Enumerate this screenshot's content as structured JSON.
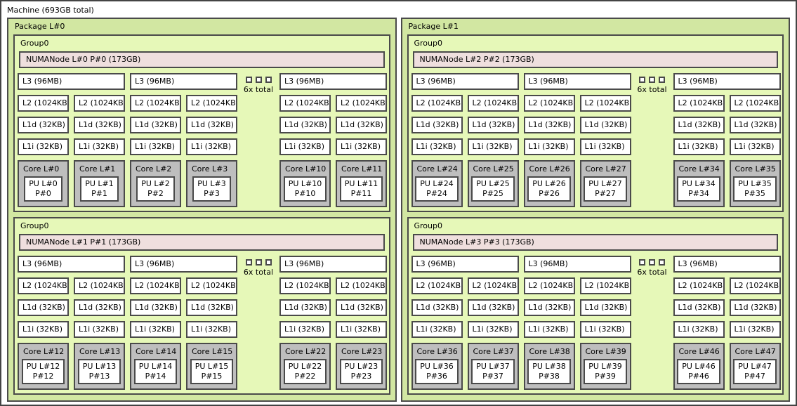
{
  "machine": {
    "label": "Machine (693GB total)"
  },
  "colors": {
    "machine_bg": "#ffffff",
    "package_bg": "#d2e7a2",
    "group_bg": "#e6f8b8",
    "numanode_bg": "#efdfde",
    "cache_bg": "#ffffff",
    "core_bg": "#bebebe",
    "pu_bg": "#ffffff",
    "border": "#4a4a4a",
    "text": "#000000"
  },
  "packages": [
    {
      "label": "Package L#0",
      "groups": [
        {
          "label": "Group0",
          "numanode": "NUMANode L#0 P#0 (173GB)",
          "elision": "6x total",
          "clusters": [
            {
              "l3": "L3 (96MB)",
              "cols": [
                {
                  "l2": "L2 (1024KB)",
                  "l1d": "L1d (32KB)",
                  "l1i": "L1i (32KB)",
                  "core": "Core L#0",
                  "pu_l": "PU L#0",
                  "pu_p": "P#0"
                },
                {
                  "l2": "L2 (1024KB)",
                  "l1d": "L1d (32KB)",
                  "l1i": "L1i (32KB)",
                  "core": "Core L#1",
                  "pu_l": "PU L#1",
                  "pu_p": "P#1"
                }
              ]
            },
            {
              "l3": "L3 (96MB)",
              "cols": [
                {
                  "l2": "L2 (1024KB)",
                  "l1d": "L1d (32KB)",
                  "l1i": "L1i (32KB)",
                  "core": "Core L#2",
                  "pu_l": "PU L#2",
                  "pu_p": "P#2"
                },
                {
                  "l2": "L2 (1024KB)",
                  "l1d": "L1d (32KB)",
                  "l1i": "L1i (32KB)",
                  "core": "Core L#3",
                  "pu_l": "PU L#3",
                  "pu_p": "P#3"
                }
              ]
            },
            {
              "l3": "L3 (96MB)",
              "cols": [
                {
                  "l2": "L2 (1024KB)",
                  "l1d": "L1d (32KB)",
                  "l1i": "L1i (32KB)",
                  "core": "Core L#10",
                  "pu_l": "PU L#10",
                  "pu_p": "P#10"
                },
                {
                  "l2": "L2 (1024KB)",
                  "l1d": "L1d (32KB)",
                  "l1i": "L1i (32KB)",
                  "core": "Core L#11",
                  "pu_l": "PU L#11",
                  "pu_p": "P#11"
                }
              ]
            }
          ]
        },
        {
          "label": "Group0",
          "numanode": "NUMANode L#1 P#1 (173GB)",
          "elision": "6x total",
          "clusters": [
            {
              "l3": "L3 (96MB)",
              "cols": [
                {
                  "l2": "L2 (1024KB)",
                  "l1d": "L1d (32KB)",
                  "l1i": "L1i (32KB)",
                  "core": "Core L#12",
                  "pu_l": "PU L#12",
                  "pu_p": "P#12"
                },
                {
                  "l2": "L2 (1024KB)",
                  "l1d": "L1d (32KB)",
                  "l1i": "L1i (32KB)",
                  "core": "Core L#13",
                  "pu_l": "PU L#13",
                  "pu_p": "P#13"
                }
              ]
            },
            {
              "l3": "L3 (96MB)",
              "cols": [
                {
                  "l2": "L2 (1024KB)",
                  "l1d": "L1d (32KB)",
                  "l1i": "L1i (32KB)",
                  "core": "Core L#14",
                  "pu_l": "PU L#14",
                  "pu_p": "P#14"
                },
                {
                  "l2": "L2 (1024KB)",
                  "l1d": "L1d (32KB)",
                  "l1i": "L1i (32KB)",
                  "core": "Core L#15",
                  "pu_l": "PU L#15",
                  "pu_p": "P#15"
                }
              ]
            },
            {
              "l3": "L3 (96MB)",
              "cols": [
                {
                  "l2": "L2 (1024KB)",
                  "l1d": "L1d (32KB)",
                  "l1i": "L1i (32KB)",
                  "core": "Core L#22",
                  "pu_l": "PU L#22",
                  "pu_p": "P#22"
                },
                {
                  "l2": "L2 (1024KB)",
                  "l1d": "L1d (32KB)",
                  "l1i": "L1i (32KB)",
                  "core": "Core L#23",
                  "pu_l": "PU L#23",
                  "pu_p": "P#23"
                }
              ]
            }
          ]
        }
      ]
    },
    {
      "label": "Package L#1",
      "groups": [
        {
          "label": "Group0",
          "numanode": "NUMANode L#2 P#2 (173GB)",
          "elision": "6x total",
          "clusters": [
            {
              "l3": "L3 (96MB)",
              "cols": [
                {
                  "l2": "L2 (1024KB)",
                  "l1d": "L1d (32KB)",
                  "l1i": "L1i (32KB)",
                  "core": "Core L#24",
                  "pu_l": "PU L#24",
                  "pu_p": "P#24"
                },
                {
                  "l2": "L2 (1024KB)",
                  "l1d": "L1d (32KB)",
                  "l1i": "L1i (32KB)",
                  "core": "Core L#25",
                  "pu_l": "PU L#25",
                  "pu_p": "P#25"
                }
              ]
            },
            {
              "l3": "L3 (96MB)",
              "cols": [
                {
                  "l2": "L2 (1024KB)",
                  "l1d": "L1d (32KB)",
                  "l1i": "L1i (32KB)",
                  "core": "Core L#26",
                  "pu_l": "PU L#26",
                  "pu_p": "P#26"
                },
                {
                  "l2": "L2 (1024KB)",
                  "l1d": "L1d (32KB)",
                  "l1i": "L1i (32KB)",
                  "core": "Core L#27",
                  "pu_l": "PU L#27",
                  "pu_p": "P#27"
                }
              ]
            },
            {
              "l3": "L3 (96MB)",
              "cols": [
                {
                  "l2": "L2 (1024KB)",
                  "l1d": "L1d (32KB)",
                  "l1i": "L1i (32KB)",
                  "core": "Core L#34",
                  "pu_l": "PU L#34",
                  "pu_p": "P#34"
                },
                {
                  "l2": "L2 (1024KB)",
                  "l1d": "L1d (32KB)",
                  "l1i": "L1i (32KB)",
                  "core": "Core L#35",
                  "pu_l": "PU L#35",
                  "pu_p": "P#35"
                }
              ]
            }
          ]
        },
        {
          "label": "Group0",
          "numanode": "NUMANode L#3 P#3 (173GB)",
          "elision": "6x total",
          "clusters": [
            {
              "l3": "L3 (96MB)",
              "cols": [
                {
                  "l2": "L2 (1024KB)",
                  "l1d": "L1d (32KB)",
                  "l1i": "L1i (32KB)",
                  "core": "Core L#36",
                  "pu_l": "PU L#36",
                  "pu_p": "P#36"
                },
                {
                  "l2": "L2 (1024KB)",
                  "l1d": "L1d (32KB)",
                  "l1i": "L1i (32KB)",
                  "core": "Core L#37",
                  "pu_l": "PU L#37",
                  "pu_p": "P#37"
                }
              ]
            },
            {
              "l3": "L3 (96MB)",
              "cols": [
                {
                  "l2": "L2 (1024KB)",
                  "l1d": "L1d (32KB)",
                  "l1i": "L1i (32KB)",
                  "core": "Core L#38",
                  "pu_l": "PU L#38",
                  "pu_p": "P#38"
                },
                {
                  "l2": "L2 (1024KB)",
                  "l1d": "L1d (32KB)",
                  "l1i": "L1i (32KB)",
                  "core": "Core L#39",
                  "pu_l": "PU L#39",
                  "pu_p": "P#39"
                }
              ]
            },
            {
              "l3": "L3 (96MB)",
              "cols": [
                {
                  "l2": "L2 (1024KB)",
                  "l1d": "L1d (32KB)",
                  "l1i": "L1i (32KB)",
                  "core": "Core L#46",
                  "pu_l": "PU L#46",
                  "pu_p": "P#46"
                },
                {
                  "l2": "L2 (1024KB)",
                  "l1d": "L1d (32KB)",
                  "l1i": "L1i (32KB)",
                  "core": "Core L#47",
                  "pu_l": "PU L#47",
                  "pu_p": "P#47"
                }
              ]
            }
          ]
        }
      ]
    }
  ]
}
